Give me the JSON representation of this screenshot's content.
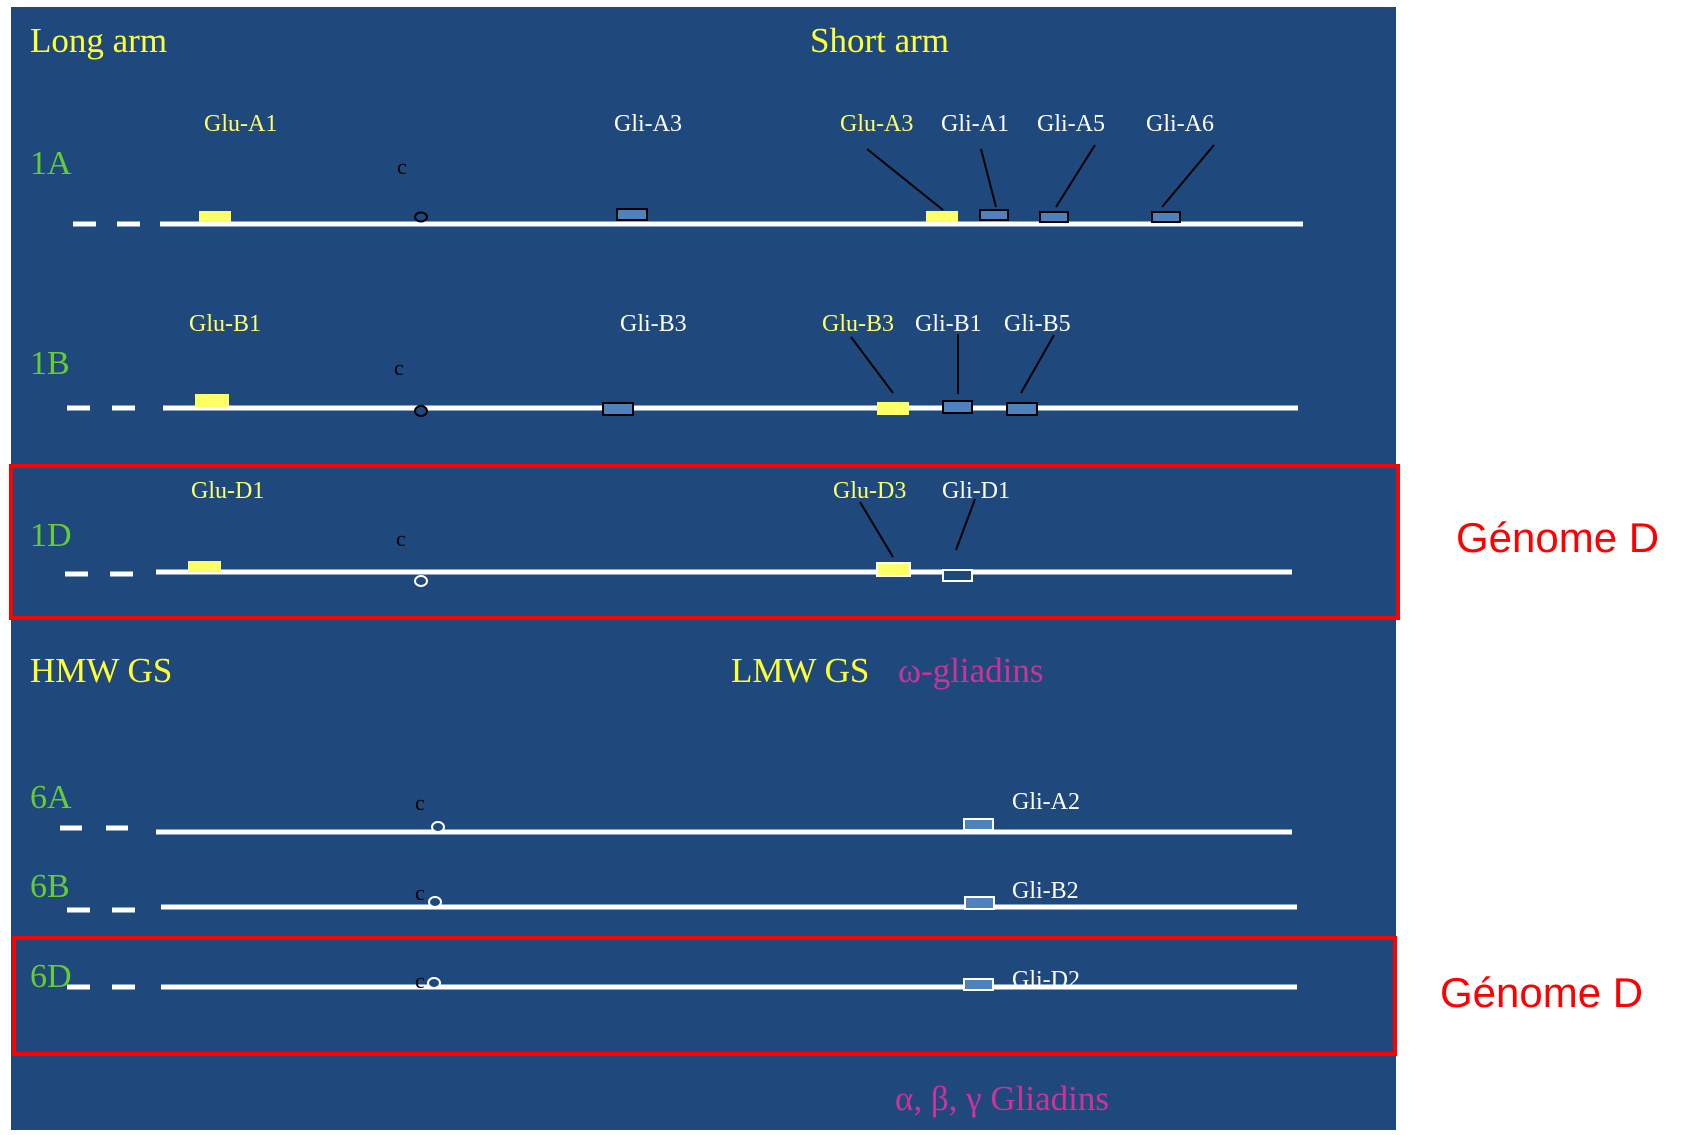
{
  "colors": {
    "panel_bg": "#1f497d",
    "line": "#ffffff",
    "gene_yellow": "#ffff66",
    "gene_blue": "#4f81bd",
    "box_red": "#ff0000",
    "label_green": "#66cc33",
    "label_yellow": "#ffff66",
    "label_magenta": "#cc3399"
  },
  "headers": {
    "long_arm": "Long arm",
    "short_arm": "Short arm",
    "hmw": "HMW GS",
    "lmw": "LMW GS",
    "omega": "ω-gliadins",
    "abg": "α, β, γ  Gliadins"
  },
  "genome_labels": [
    "Génome D",
    "Génome D"
  ],
  "centromere_label": "c",
  "chromosomes": [
    {
      "name": "1A",
      "genes": [
        {
          "label": "Glu-A1",
          "type": "glutenin"
        },
        {
          "label": "Gli-A3",
          "type": "gliadin"
        },
        {
          "label": "Glu-A3",
          "type": "glutenin"
        },
        {
          "label": "Gli-A1",
          "type": "gliadin"
        },
        {
          "label": "Gli-A5",
          "type": "gliadin"
        },
        {
          "label": "Gli-A6",
          "type": "gliadin"
        }
      ]
    },
    {
      "name": "1B",
      "genes": [
        {
          "label": "Glu-B1",
          "type": "glutenin"
        },
        {
          "label": "Gli-B3",
          "type": "gliadin"
        },
        {
          "label": "Glu-B3",
          "type": "glutenin"
        },
        {
          "label": "Gli-B1",
          "type": "gliadin"
        },
        {
          "label": "Gli-B5",
          "type": "gliadin"
        }
      ]
    },
    {
      "name": "1D",
      "genes": [
        {
          "label": "Glu-D1",
          "type": "glutenin"
        },
        {
          "label": "Glu-D3",
          "type": "glutenin"
        },
        {
          "label": "Gli-D1",
          "type": "gliadin"
        }
      ]
    },
    {
      "name": "6A",
      "genes": [
        {
          "label": "Gli-A2",
          "type": "gliadin"
        }
      ]
    },
    {
      "name": "6B",
      "genes": [
        {
          "label": "Gli-B2",
          "type": "gliadin"
        }
      ]
    },
    {
      "name": "6D",
      "genes": [
        {
          "label": "Gli-D2",
          "type": "gliadin"
        }
      ]
    }
  ]
}
